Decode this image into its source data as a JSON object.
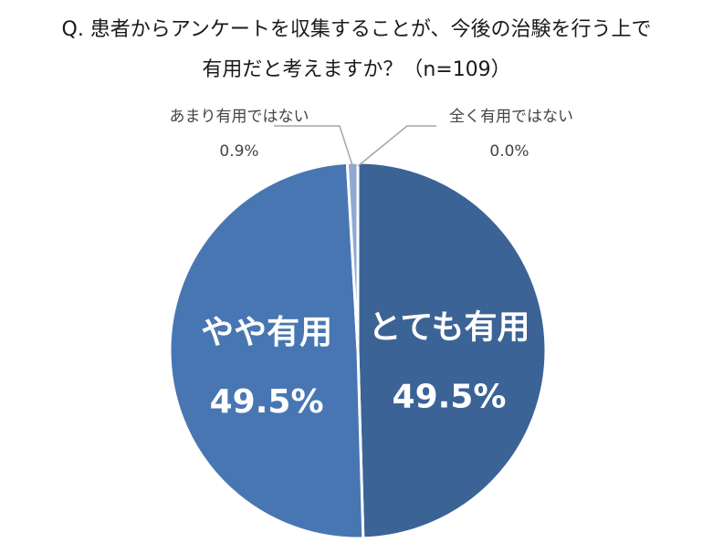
{
  "title": {
    "line1": "Q. 患者からアンケートを収集することが、今後の治験を行う上で",
    "line2": "有用だと考えますか？（n=109）"
  },
  "chart_data": {
    "type": "pie",
    "start": "12 o'clock",
    "direction": "clockwise",
    "slices": [
      {
        "label": "とても有用",
        "value": 49.5,
        "value_label": "49.5%",
        "color": "#3b6396",
        "label_position": "inside"
      },
      {
        "label": "やや有用",
        "value": 49.5,
        "value_label": "49.5%",
        "color": "#4876b3",
        "label_position": "inside"
      },
      {
        "label": "あまり有用ではない",
        "value": 0.9,
        "value_label": "0.9%",
        "color": "#8fa8d3",
        "label_position": "outside"
      },
      {
        "label": "全く有用ではない",
        "value": 0.0,
        "value_label": "0.0%",
        "color": "#c9d6ea",
        "label_position": "outside"
      }
    ],
    "slice_border_color": "#ffffff",
    "leader_line_color": "#a6a6a6"
  }
}
